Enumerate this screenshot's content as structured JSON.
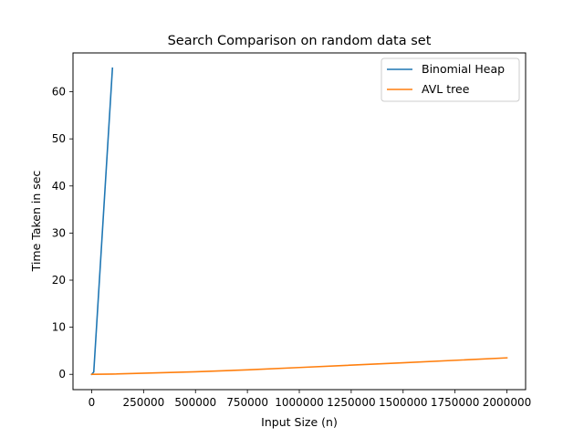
{
  "chart_data": {
    "type": "line",
    "title": "Search Comparison on random data set",
    "xlabel": "Input Size (n)",
    "ylabel": "Time Taken in sec",
    "xlim": [
      -90000,
      2090000
    ],
    "ylim": [
      -3.25,
      68.25
    ],
    "grid": false,
    "legend_position": "top-right",
    "x_ticks": [
      0,
      250000,
      500000,
      750000,
      1000000,
      1250000,
      1500000,
      1750000,
      2000000
    ],
    "x_tick_labels": [
      "0",
      "250000",
      "500000",
      "750000",
      "1000000",
      "1250000",
      "1500000",
      "1750000",
      "2000000"
    ],
    "y_ticks": [
      0,
      10,
      20,
      30,
      40,
      50,
      60
    ],
    "y_tick_labels": [
      "0",
      "10",
      "20",
      "30",
      "40",
      "50",
      "60"
    ],
    "series": [
      {
        "name": "Binomial Heap",
        "color": "#1f77b4",
        "x": [
          0,
          10000,
          100000
        ],
        "y": [
          0,
          0.5,
          65
        ]
      },
      {
        "name": "AVL tree",
        "color": "#ff7f0e",
        "x": [
          0,
          10000,
          100000,
          500000,
          750000,
          1000000,
          1500000,
          2000000
        ],
        "y": [
          0,
          0.01,
          0.06,
          0.55,
          0.95,
          1.45,
          2.45,
          3.5
        ]
      }
    ]
  }
}
